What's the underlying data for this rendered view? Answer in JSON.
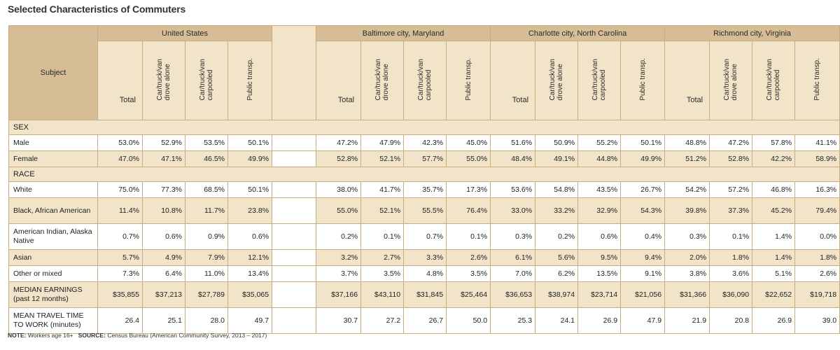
{
  "title": "Selected Characteristics of Commuters",
  "subject_header": "Subject",
  "regions": [
    "United States",
    "Baltimore city, Maryland",
    "Charlotte city, North Carolina",
    "Richmond city, Virginia"
  ],
  "subheaders": [
    "Total",
    "Car/truck/van\ndrove alone",
    "Car/truck/van\ncarpooled",
    "Public transp."
  ],
  "sections": [
    {
      "name": "SEX",
      "rows": [
        {
          "label": "Male",
          "values": [
            "53.0%",
            "52.9%",
            "53.5%",
            "50.1%",
            "47.2%",
            "47.9%",
            "42.3%",
            "45.0%",
            "51.6%",
            "50.9%",
            "55.2%",
            "50.1%",
            "48.8%",
            "47.2%",
            "57.8%",
            "41.1%"
          ]
        },
        {
          "label": "Female",
          "values": [
            "47.0%",
            "47.1%",
            "46.5%",
            "49.9%",
            "52.8%",
            "52.1%",
            "57.7%",
            "55.0%",
            "48.4%",
            "49.1%",
            "44.8%",
            "49.9%",
            "51.2%",
            "52.8%",
            "42.2%",
            "58.9%"
          ]
        }
      ]
    },
    {
      "name": "RACE",
      "rows": [
        {
          "label": "White",
          "values": [
            "75.0%",
            "77.3%",
            "68.5%",
            "50.1%",
            "38.0%",
            "41.7%",
            "35.7%",
            "17.3%",
            "53.6%",
            "54.8%",
            "43.5%",
            "26.7%",
            "54.2%",
            "57.2%",
            "46.8%",
            "16.3%"
          ]
        },
        {
          "label": "Black, African American",
          "values": [
            "11.4%",
            "10.8%",
            "11.7%",
            "23.8%",
            "55.0%",
            "52.1%",
            "55.5%",
            "76.4%",
            "33.0%",
            "33.2%",
            "32.9%",
            "54.3%",
            "39.8%",
            "37.3%",
            "45.2%",
            "79.4%"
          ]
        },
        {
          "label": "American Indian, Alaska Native",
          "values": [
            "0.7%",
            "0.6%",
            "0.9%",
            "0.6%",
            "0.2%",
            "0.1%",
            "0.7%",
            "0.1%",
            "0.3%",
            "0.2%",
            "0.6%",
            "0.4%",
            "0.3%",
            "0.1%",
            "1.4%",
            "0.0%"
          ]
        },
        {
          "label": "Asian",
          "values": [
            "5.7%",
            "4.9%",
            "7.9%",
            "12.1%",
            "3.2%",
            "2.7%",
            "3.3%",
            "2.6%",
            "6.1%",
            "5.6%",
            "9.5%",
            "9.4%",
            "2.0%",
            "1.8%",
            "1.4%",
            "1.8%"
          ]
        },
        {
          "label": "Other or mixed",
          "values": [
            "7.3%",
            "6.4%",
            "11.0%",
            "13.4%",
            "3.7%",
            "3.5%",
            "4.8%",
            "3.5%",
            "7.0%",
            "6.2%",
            "13.5%",
            "9.1%",
            "3.8%",
            "3.6%",
            "5.1%",
            "2.6%"
          ]
        }
      ]
    }
  ],
  "extra_rows": [
    {
      "label": "MEDIAN EARNINGS (past 12 months)",
      "values": [
        "$35,855",
        "$37,213",
        "$27,789",
        "$35,065",
        "$37,166",
        "$43,110",
        "$31,845",
        "$25,464",
        "$36,653",
        "$38,974",
        "$23,714",
        "$21,056",
        "$31,366",
        "$36,090",
        "$22,652",
        "$19,718"
      ]
    },
    {
      "label": "MEAN TRAVEL TIME TO WORK (minutes)",
      "values": [
        "26.4",
        "25.1",
        "28.0",
        "49.7",
        "30.7",
        "27.2",
        "26.7",
        "50.0",
        "25.3",
        "24.1",
        "26.9",
        "47.9",
        "21.9",
        "20.8",
        "26.9",
        "39.0"
      ]
    }
  ],
  "note": {
    "note_label": "NOTE:",
    "note_text": "Workers age 16+",
    "source_label": "SOURCE:",
    "source_text": "Census Bureau (American Community Survey, 2013 – 2017)"
  }
}
